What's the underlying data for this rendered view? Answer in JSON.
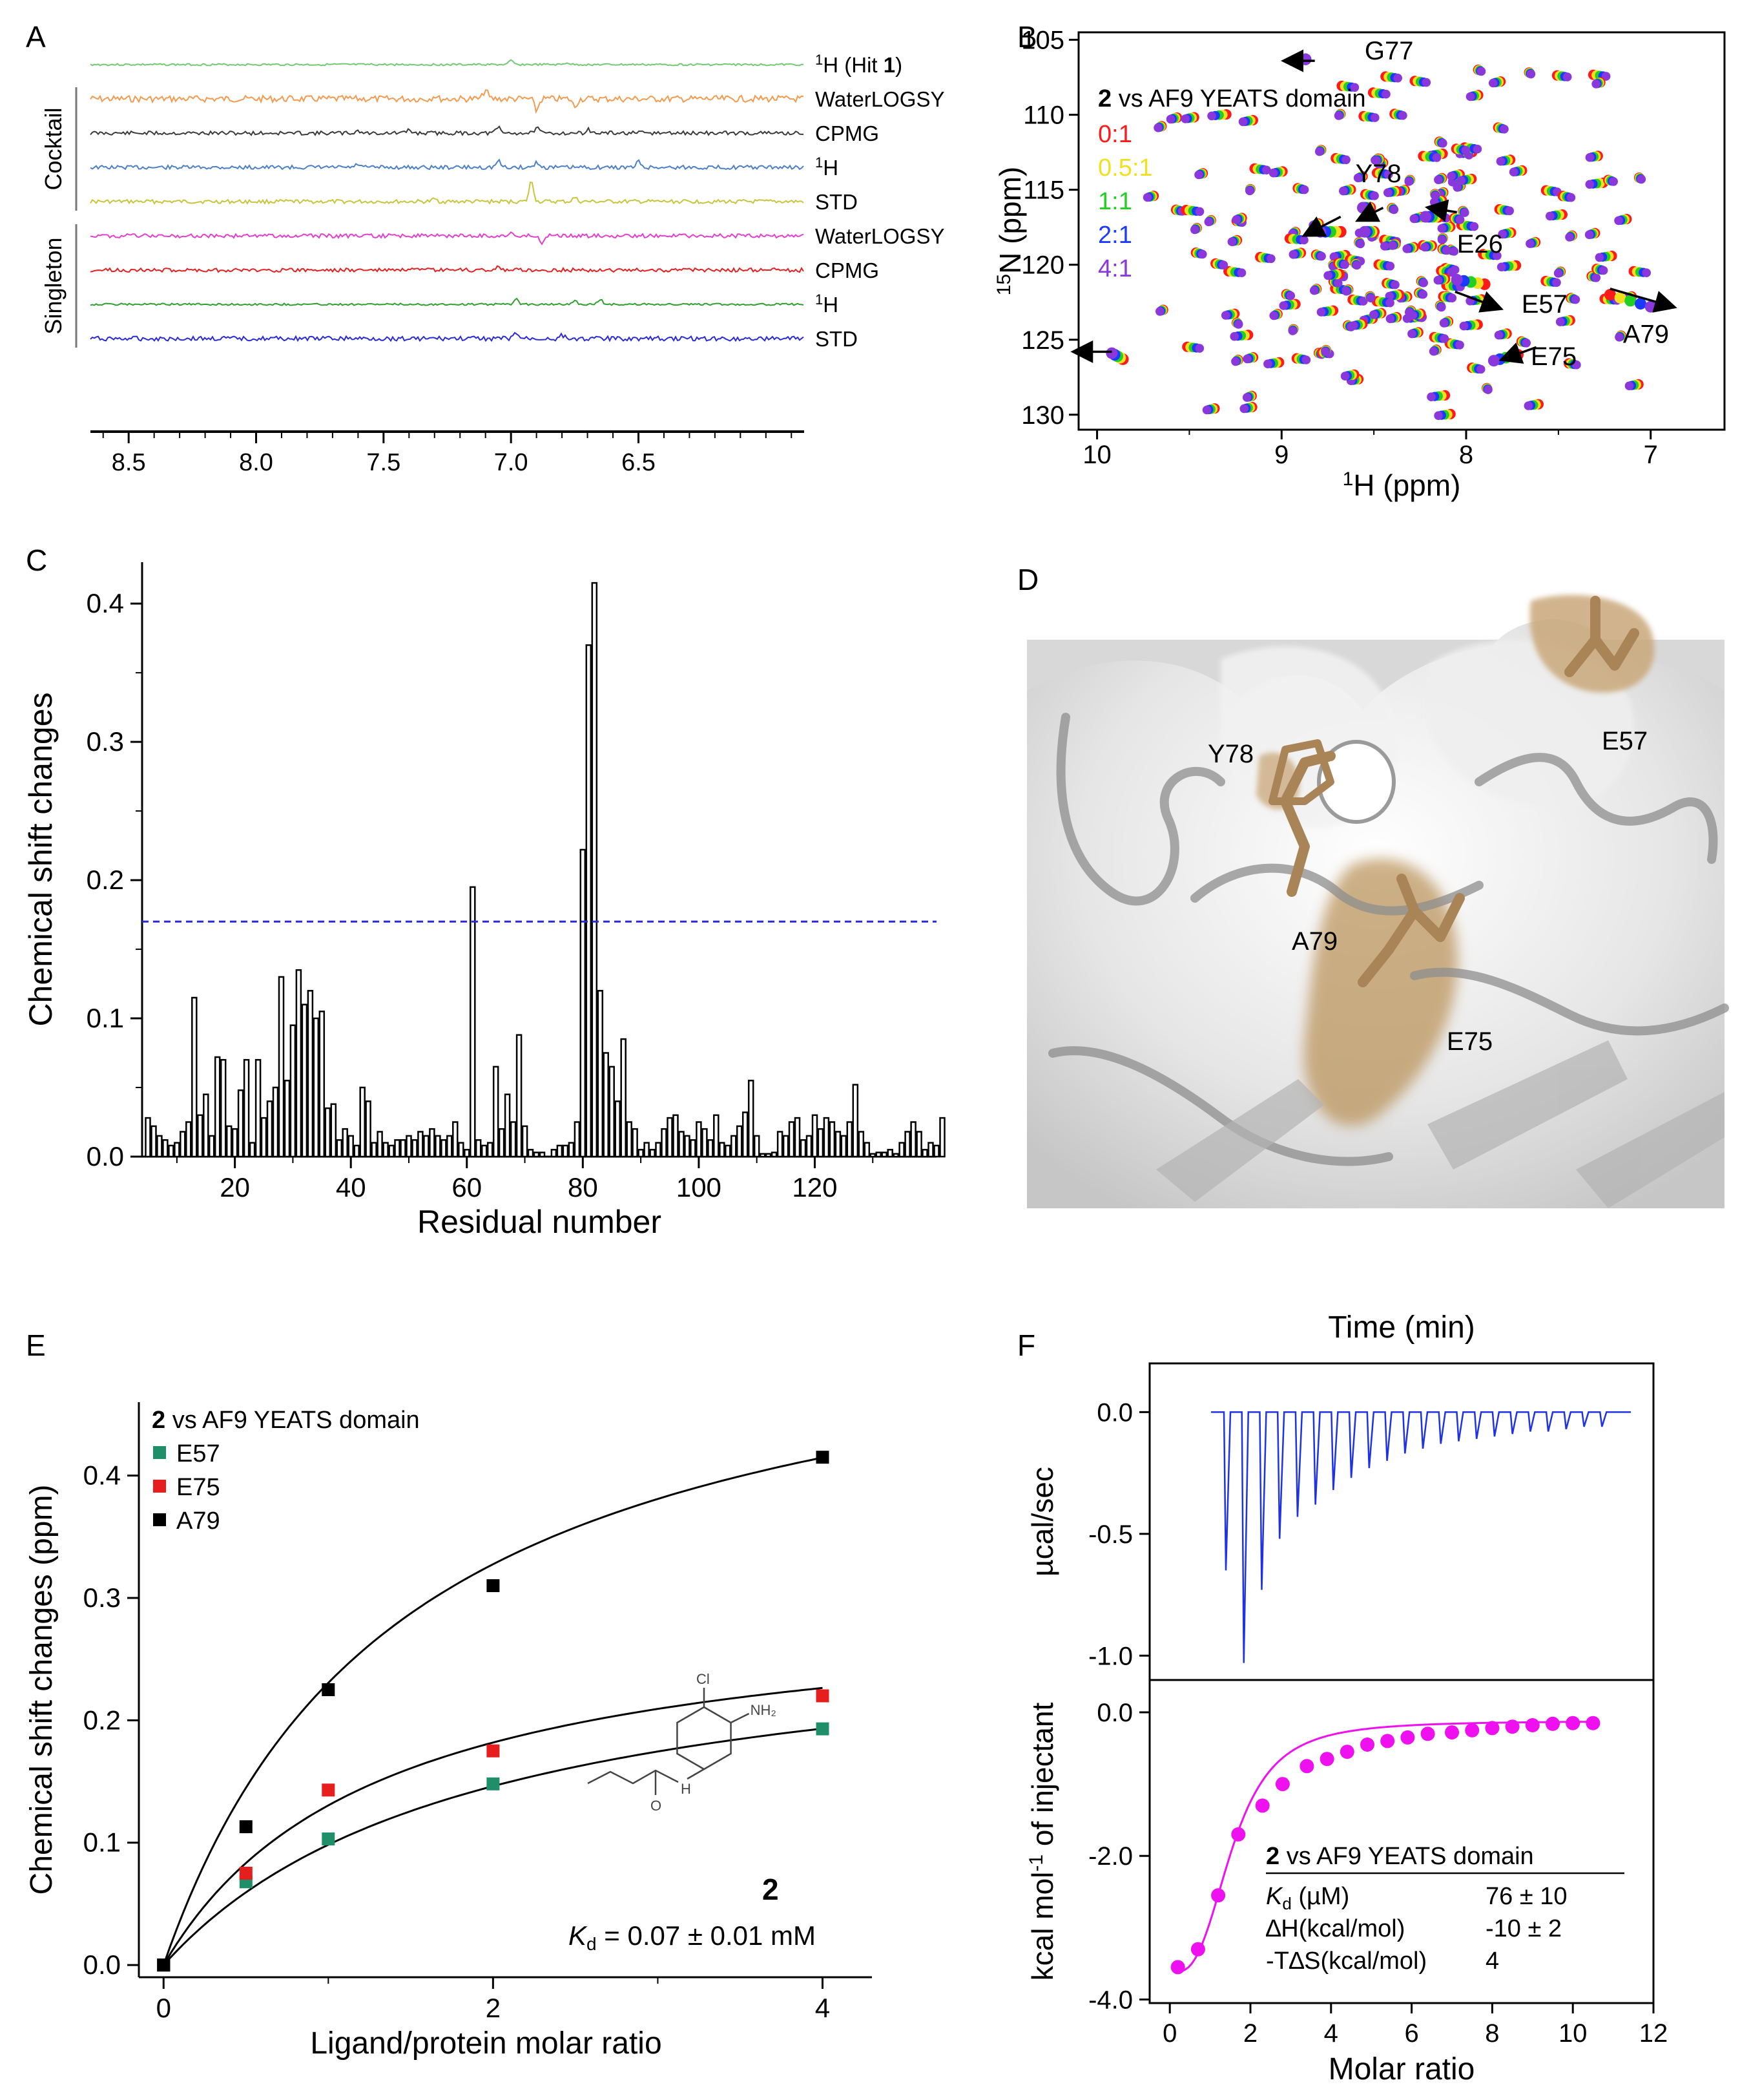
{
  "panel_letters": [
    "A",
    "B",
    "C",
    "D",
    "E",
    "F"
  ],
  "chart_data": [
    {
      "id": "A",
      "type": "line",
      "title": "",
      "xlabel": "",
      "ylabel": "",
      "xlim": [
        8.65,
        5.85
      ],
      "x_ticks": [
        "8.5",
        "8.0",
        "7.5",
        "7.0",
        "6.5"
      ],
      "x_tick_values": [
        8.5,
        8.0,
        7.5,
        7.0,
        6.5
      ],
      "groups": [
        {
          "label": "Cocktail",
          "traces": [
            1,
            2,
            3,
            4
          ]
        },
        {
          "label": "Singleton",
          "traces": [
            5,
            6,
            7,
            8
          ]
        }
      ],
      "hit_label": {
        "prefix": "1",
        "main": "H (Hit ",
        "bold": "1",
        "suffix": ")"
      },
      "h1_label": {
        "sup": "1",
        "main": "H"
      },
      "traces": [
        {
          "name": "1H (Hit 1)",
          "color": "#74c874",
          "amp": 1.5,
          "seed": 3,
          "peaks": [
            [
              7.0,
              6
            ],
            [
              6.78,
              3
            ]
          ]
        },
        {
          "name": "WaterLOGSY",
          "color": "#f39a4e",
          "amp": 5,
          "seed": 7,
          "peaks": [
            [
              7.1,
              14
            ],
            [
              6.9,
              -18
            ],
            [
              6.75,
              -12
            ],
            [
              7.3,
              5
            ]
          ]
        },
        {
          "name": "CPMG",
          "color": "#3a3a3a",
          "amp": 3,
          "seed": 11,
          "peaks": [
            [
              7.05,
              9
            ],
            [
              6.9,
              8
            ],
            [
              6.7,
              6
            ],
            [
              7.4,
              5
            ],
            [
              7.6,
              4
            ]
          ]
        },
        {
          "name": "1H",
          "color": "#4b7fc7",
          "amp": 3,
          "seed": 13,
          "peaks": [
            [
              7.05,
              10
            ],
            [
              6.9,
              8
            ],
            [
              6.5,
              9
            ],
            [
              7.6,
              5
            ]
          ]
        },
        {
          "name": "STD",
          "color": "#c8c43c",
          "amp": 3,
          "seed": 17,
          "peaks": [
            [
              6.92,
              32
            ],
            [
              6.75,
              6
            ],
            [
              7.3,
              4
            ]
          ]
        },
        {
          "name": "WaterLOGSY",
          "color": "#e23fcf",
          "amp": 3,
          "seed": 19,
          "peaks": [
            [
              6.88,
              -14
            ],
            [
              7.0,
              4
            ]
          ]
        },
        {
          "name": "CPMG",
          "color": "#e52020",
          "amp": 3,
          "seed": 23,
          "peaks": [
            [
              7.05,
              6
            ]
          ]
        },
        {
          "name": "1H",
          "color": "#2ea02e",
          "amp": 1.5,
          "seed": 29,
          "peaks": [
            [
              6.98,
              8
            ],
            [
              6.75,
              6
            ],
            [
              6.65,
              8
            ]
          ]
        },
        {
          "name": "STD",
          "color": "#2a2ad8",
          "amp": 3.5,
          "seed": 31,
          "peaks": [
            [
              6.98,
              9
            ],
            [
              6.8,
              5
            ]
          ]
        }
      ]
    },
    {
      "id": "B",
      "type": "scatter",
      "title": "2 vs AF9 YEATS domain",
      "title_bold": "2",
      "title_rest": " vs AF9 YEATS domain",
      "xlabel_sup": "1",
      "xlabel": "H  (ppm)",
      "ylabel_sup": "15",
      "ylabel": "N (ppm)",
      "xlim": [
        10.1,
        6.6
      ],
      "ylim": [
        131,
        104.5
      ],
      "x_ticks": [
        10,
        9,
        8,
        7
      ],
      "y_ticks": [
        105,
        110,
        115,
        120,
        125,
        130
      ],
      "legend": [
        {
          "label": "0:1",
          "color": "#ff1a1a"
        },
        {
          "label": "0.5:1",
          "color": "#f0e020"
        },
        {
          "label": "1:1",
          "color": "#22d022"
        },
        {
          "label": "2:1",
          "color": "#1a3aff"
        },
        {
          "label": "4:1",
          "color": "#8a38dc"
        }
      ],
      "annotations": [
        {
          "label": "G77",
          "x": 8.55,
          "y": 106.3
        },
        {
          "label": "Y78",
          "x": 8.6,
          "y": 114.5
        },
        {
          "label": "E26",
          "x": 8.05,
          "y": 119.2
        },
        {
          "label": "E57",
          "x": 7.7,
          "y": 123.2
        },
        {
          "label": "A79",
          "x": 7.15,
          "y": 125.2
        },
        {
          "label": "E75",
          "x": 7.65,
          "y": 126.7
        }
      ],
      "arrows": [
        {
          "from": [
            8.82,
            106.4
          ],
          "to": [
            8.98,
            106.4
          ]
        },
        {
          "from": [
            8.68,
            116.8
          ],
          "to": [
            8.87,
            118.0
          ]
        },
        {
          "from": [
            8.45,
            116.2
          ],
          "to": [
            8.58,
            117.0
          ]
        },
        {
          "from": [
            8.05,
            116.5
          ],
          "to": [
            8.2,
            116.2
          ]
        },
        {
          "from": [
            8.06,
            121.8
          ],
          "to": [
            7.82,
            122.9
          ]
        },
        {
          "from": [
            7.22,
            121.6
          ],
          "to": [
            6.88,
            122.8
          ]
        },
        {
          "from": [
            7.62,
            125.5
          ],
          "to": [
            7.8,
            126.3
          ]
        },
        {
          "from": [
            9.92,
            125.8
          ],
          "to": [
            10.12,
            125.8
          ]
        }
      ],
      "shifted_peaks": [
        {
          "start": [
            8.87,
            106.3
          ],
          "end": [
            8.87,
            106.3
          ]
        },
        {
          "start": [
            8.68,
            117.8
          ],
          "end": [
            8.79,
            117.8
          ]
        },
        {
          "start": [
            8.52,
            116.2
          ],
          "end": [
            8.56,
            116.2
          ]
        },
        {
          "start": [
            8.15,
            116.8
          ],
          "end": [
            8.22,
            116.8
          ]
        },
        {
          "start": [
            7.9,
            121.3
          ],
          "end": [
            8.05,
            121.0
          ]
        },
        {
          "start": [
            7.22,
            122.0
          ],
          "end": [
            7.0,
            122.8
          ]
        },
        {
          "start": [
            7.72,
            126.0
          ],
          "end": [
            7.85,
            126.4
          ]
        },
        {
          "start": [
            9.86,
            126.3
          ],
          "end": [
            9.92,
            125.9
          ]
        },
        {
          "start": [
            8.5,
            117.8
          ],
          "end": [
            8.55,
            117.8
          ]
        }
      ],
      "peak_count": 190
    },
    {
      "id": "C",
      "type": "bar",
      "title": "",
      "xlabel": "Residual number",
      "ylabel": "Chemical shift changes",
      "xlim": [
        4,
        141
      ],
      "ylim": [
        0,
        0.43
      ],
      "x_ticks": [
        20,
        40,
        60,
        80,
        100,
        120
      ],
      "y_ticks": [
        "0.0",
        "0.1",
        "0.2",
        "0.3",
        "0.4"
      ],
      "y_tick_values": [
        0.0,
        0.1,
        0.2,
        0.3,
        0.4
      ],
      "threshold": 0.17,
      "x_start": 5,
      "values": [
        0.028,
        0.022,
        0.015,
        0.012,
        0.008,
        0.01,
        0.018,
        0.025,
        0.115,
        0.03,
        0.045,
        0.015,
        0.072,
        0.07,
        0.022,
        0.02,
        0.048,
        0.07,
        0.01,
        0.07,
        0.028,
        0.04,
        0.05,
        0.13,
        0.055,
        0.095,
        0.135,
        0.11,
        0.12,
        0.1,
        0.105,
        0.035,
        0.038,
        0.012,
        0.02,
        0.015,
        0.008,
        0.05,
        0.04,
        0.01,
        0.018,
        0.01,
        0.008,
        0.012,
        0.012,
        0.015,
        0.012,
        0.018,
        0.015,
        0.02,
        0.015,
        0.012,
        0.015,
        0.025,
        0.01,
        0.005,
        0.195,
        0.012,
        0.008,
        0.01,
        0.065,
        0.02,
        0.045,
        0.025,
        0.088,
        0.022,
        0.005,
        0.003,
        0.003,
        0.0,
        0.005,
        0.008,
        0.008,
        0.01,
        0.025,
        0.222,
        0.37,
        0.415,
        0.12,
        0.075,
        0.065,
        0.04,
        0.085,
        0.025,
        0.02,
        0.005,
        0.01,
        0.005,
        0.01,
        0.02,
        0.028,
        0.03,
        0.018,
        0.015,
        0.012,
        0.025,
        0.02,
        0.012,
        0.03,
        0.01,
        0.008,
        0.015,
        0.022,
        0.032,
        0.055,
        0.015,
        0.002,
        0.002,
        0.003,
        0.018,
        0.015,
        0.025,
        0.028,
        0.012,
        0.015,
        0.03,
        0.02,
        0.028,
        0.025,
        0.018,
        0.015,
        0.025,
        0.052,
        0.018,
        0.01,
        0.002,
        0.003,
        0.003,
        0.005,
        0.002,
        0.01,
        0.018,
        0.025,
        0.018,
        0.005,
        0.01,
        0.008,
        0.028
      ],
      "highlight": [
        57,
        76,
        77,
        78,
        79
      ]
    },
    {
      "id": "E",
      "type": "scatter",
      "title": "2 vs AF9 YEATS domain",
      "title_bold": "2",
      "title_rest": " vs AF9 YEATS domain",
      "xlabel": "Ligand/protein molar ratio",
      "ylabel": "Chemical shift changes (ppm)",
      "xlim": [
        -0.15,
        4.3
      ],
      "ylim": [
        -0.01,
        0.46
      ],
      "x_ticks": [
        0,
        2,
        4
      ],
      "y_ticks": [
        "0.0",
        "0.1",
        "0.2",
        "0.3",
        "0.4"
      ],
      "y_tick_values": [
        0.0,
        0.1,
        0.2,
        0.3,
        0.4
      ],
      "x": [
        0,
        0.5,
        1,
        2,
        4
      ],
      "series": [
        {
          "name": "E57",
          "color": "#1f8f6a",
          "values": [
            0.0,
            0.068,
            0.103,
            0.148,
            0.193
          ],
          "bmax": 0.285,
          "kd": 1.9
        },
        {
          "name": "E75",
          "color": "#e61e1e",
          "values": [
            0.0,
            0.075,
            0.143,
            0.175,
            0.22
          ],
          "bmax": 0.3,
          "kd": 1.3
        },
        {
          "name": "A79",
          "color": "#000000",
          "values": [
            0.0,
            0.113,
            0.225,
            0.31,
            0.415
          ],
          "bmax": 0.565,
          "kd": 1.45
        }
      ],
      "compound_label": "2",
      "kd_prefix": "K",
      "kd_sub": "d",
      "kd_text": " = 0.07 ± 0.01 mM",
      "structure_labels": {
        "cl": "Cl",
        "nh2": "NH₂",
        "nh": "H",
        "o": "O"
      }
    },
    {
      "id": "F",
      "type": "line",
      "title": "Time (min)",
      "top_ylabel": "µcal/sec",
      "top_ylim": [
        -1.1,
        0.2
      ],
      "top_y_ticks": [
        "0.0",
        "-0.5",
        "-1.0"
      ],
      "top_y_tick_values": [
        0.0,
        -0.5,
        -1.0
      ],
      "injection_depths": [
        -0.65,
        -1.03,
        -0.73,
        -0.52,
        -0.43,
        -0.38,
        -0.32,
        -0.27,
        -0.23,
        -0.2,
        -0.17,
        -0.15,
        -0.13,
        -0.12,
        -0.11,
        -0.1,
        -0.09,
        -0.08,
        -0.08,
        -0.07,
        -0.06,
        -0.06
      ],
      "bottom_ylabel": "kcal mol-1 of injectant",
      "bottom_ylabel_parts": {
        "pre": "kcal mol",
        "sup": "-1",
        "post": " of injectant"
      },
      "bottom_ylim": [
        -4.05,
        0.45
      ],
      "bottom_y_ticks": [
        "0.0",
        "-2.0",
        "-4.0"
      ],
      "bottom_y_tick_values": [
        0.0,
        -2.0,
        -4.0
      ],
      "xlabel": "Molar ratio",
      "xlim": [
        -0.5,
        12.0
      ],
      "x_ticks": [
        0,
        2,
        4,
        6,
        8,
        10,
        12
      ],
      "points_x": [
        0.2,
        0.7,
        1.2,
        1.7,
        2.3,
        2.8,
        3.4,
        3.9,
        4.4,
        4.9,
        5.4,
        5.9,
        6.4,
        7.0,
        7.5,
        8.0,
        8.5,
        9.0,
        9.5,
        10.0,
        10.5
      ],
      "points_y": [
        -3.55,
        -3.3,
        -2.55,
        -1.7,
        -1.3,
        -1.0,
        -0.75,
        -0.65,
        -0.55,
        -0.45,
        -0.4,
        -0.35,
        -0.3,
        -0.28,
        -0.25,
        -0.22,
        -0.2,
        -0.18,
        -0.16,
        -0.15,
        -0.15
      ],
      "point_color": "#ee10ee",
      "trace_color": "#1e32e6",
      "table": {
        "title_bold": "2",
        "title_rest": " vs AF9 YEATS domain",
        "rows": [
          {
            "k_main": "K",
            "k_sub": "d",
            "k_rest": " (µM)",
            "value": "76 ± 10"
          },
          {
            "label": "∆H(kcal/mol)",
            "value": "-10 ± 2"
          },
          {
            "label": "-T∆S(kcal/mol)",
            "value": "4"
          }
        ]
      }
    }
  ],
  "structure_D": {
    "labels": [
      "Y78",
      "E57",
      "A79",
      "E75"
    ]
  }
}
